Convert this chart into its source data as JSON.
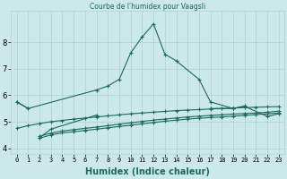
{
  "title": "Courbe de l'humidex pour Vaagsli",
  "xlabel": "Humidex (Indice chaleur)",
  "background_color": "#cce8e8",
  "grid_color": "#aad4cc",
  "line_color": "#1a6b5a",
  "xlim": [
    -0.5,
    23.5
  ],
  "ylim": [
    3.8,
    9.2
  ],
  "yticks": [
    4,
    5,
    6,
    7,
    8
  ],
  "xticks": [
    0,
    1,
    2,
    3,
    4,
    5,
    6,
    7,
    8,
    9,
    10,
    11,
    12,
    13,
    14,
    15,
    16,
    17,
    18,
    19,
    20,
    21,
    22,
    23
  ],
  "lines": [
    {
      "x": [
        0,
        1,
        7,
        8,
        9,
        10,
        11,
        12,
        13,
        14,
        16,
        17,
        19,
        20
      ],
      "y": [
        5.75,
        5.5,
        6.2,
        6.35,
        6.6,
        7.6,
        8.2,
        8.7,
        7.55,
        7.3,
        6.6,
        5.75,
        5.5,
        5.6
      ]
    },
    {
      "x": [
        0,
        1
      ],
      "y": [
        5.75,
        5.5
      ]
    },
    {
      "x": [
        2,
        3,
        7
      ],
      "y": [
        4.4,
        4.72,
        5.25
      ]
    },
    {
      "x": [
        2,
        3,
        4,
        5,
        6,
        7,
        8,
        9,
        10,
        11,
        12,
        13,
        14,
        15,
        16,
        17,
        18,
        19,
        20,
        21,
        22,
        23
      ],
      "y": [
        4.38,
        4.5,
        4.58,
        4.62,
        4.67,
        4.72,
        4.77,
        4.82,
        4.87,
        4.92,
        4.97,
        5.02,
        5.06,
        5.1,
        5.13,
        5.16,
        5.18,
        5.21,
        5.24,
        5.27,
        5.3,
        5.33
      ]
    },
    {
      "x": [
        2,
        3,
        4,
        5,
        6,
        7,
        8,
        9,
        10,
        11,
        12,
        13,
        14,
        15,
        16,
        17,
        18,
        19,
        20,
        21,
        22,
        23
      ],
      "y": [
        4.45,
        4.57,
        4.65,
        4.7,
        4.75,
        4.8,
        4.85,
        4.91,
        4.96,
        5.01,
        5.06,
        5.1,
        5.14,
        5.18,
        5.21,
        5.24,
        5.26,
        5.29,
        5.31,
        5.33,
        5.36,
        5.4
      ]
    },
    {
      "x": [
        0,
        1,
        2,
        3,
        4,
        5,
        6,
        7,
        8,
        9,
        10,
        11,
        12,
        13,
        14,
        15,
        16,
        17,
        18,
        19,
        20,
        21,
        22,
        23
      ],
      "y": [
        4.75,
        4.85,
        4.93,
        5.0,
        5.05,
        5.1,
        5.14,
        5.18,
        5.22,
        5.26,
        5.3,
        5.33,
        5.36,
        5.39,
        5.42,
        5.44,
        5.46,
        5.48,
        5.5,
        5.52,
        5.53,
        5.55,
        5.56,
        5.57
      ]
    },
    {
      "x": [
        17,
        19,
        20,
        22,
        23
      ],
      "y": [
        5.5,
        5.5,
        5.58,
        5.2,
        5.3
      ]
    }
  ]
}
